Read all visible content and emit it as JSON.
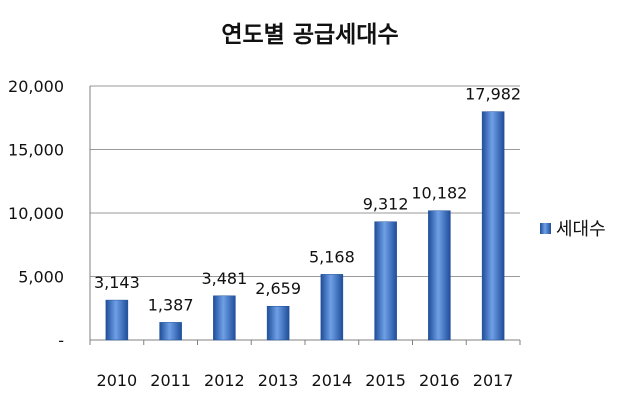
{
  "chart_data": {
    "type": "bar",
    "title": "연도별 공급세대수",
    "categories": [
      "2010",
      "2011",
      "2012",
      "2013",
      "2014",
      "2015",
      "2016",
      "2017"
    ],
    "series": [
      {
        "name": "세대수",
        "values": [
          3143,
          1387,
          3481,
          2659,
          5168,
          9312,
          10182,
          17982
        ],
        "data_labels": [
          "3,143",
          "1,387",
          "3,481",
          "2,659",
          "5,168",
          "9,312",
          "10,182",
          "17,982"
        ]
      }
    ],
    "ylim": [
      0,
      20000
    ],
    "yticks": [
      0,
      5000,
      10000,
      15000,
      20000
    ],
    "ytick_labels": [
      "-",
      "5,000",
      "10,000",
      "15,000",
      "20,000"
    ],
    "grid": true,
    "legend_position": "right",
    "colors": {
      "bar_dark": "#1f4e9a",
      "bar_mid": "#3f74c8",
      "bar_light": "#6fa0e6",
      "gridline": "#9a9a9a",
      "axis": "#808080"
    }
  }
}
